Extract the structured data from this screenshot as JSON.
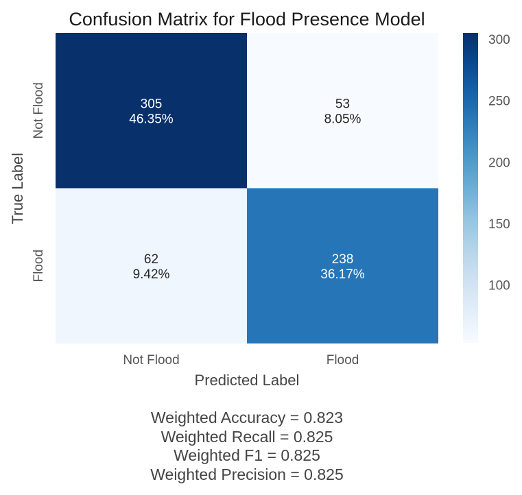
{
  "chart_data": {
    "type": "heatmap",
    "title": "Confusion Matrix for Flood Presence Model",
    "xlabel": "Predicted Label",
    "ylabel": "True Label",
    "x_categories": [
      "Not Flood",
      "Flood"
    ],
    "y_categories": [
      "Not Flood",
      "Flood"
    ],
    "values": [
      [
        305,
        53
      ],
      [
        62,
        238
      ]
    ],
    "percentages": [
      [
        "46.35%",
        "8.05%"
      ],
      [
        "9.42%",
        "36.17%"
      ]
    ],
    "colormap": "Blues",
    "colorbar": {
      "min": 53,
      "max": 305,
      "ticks": [
        100,
        150,
        200,
        250,
        300
      ]
    },
    "grid": false
  },
  "metrics": [
    "Weighted Accuracy = 0.823",
    "Weighted Recall = 0.825",
    "Weighted F1 = 0.825",
    "Weighted Precision = 0.825"
  ]
}
